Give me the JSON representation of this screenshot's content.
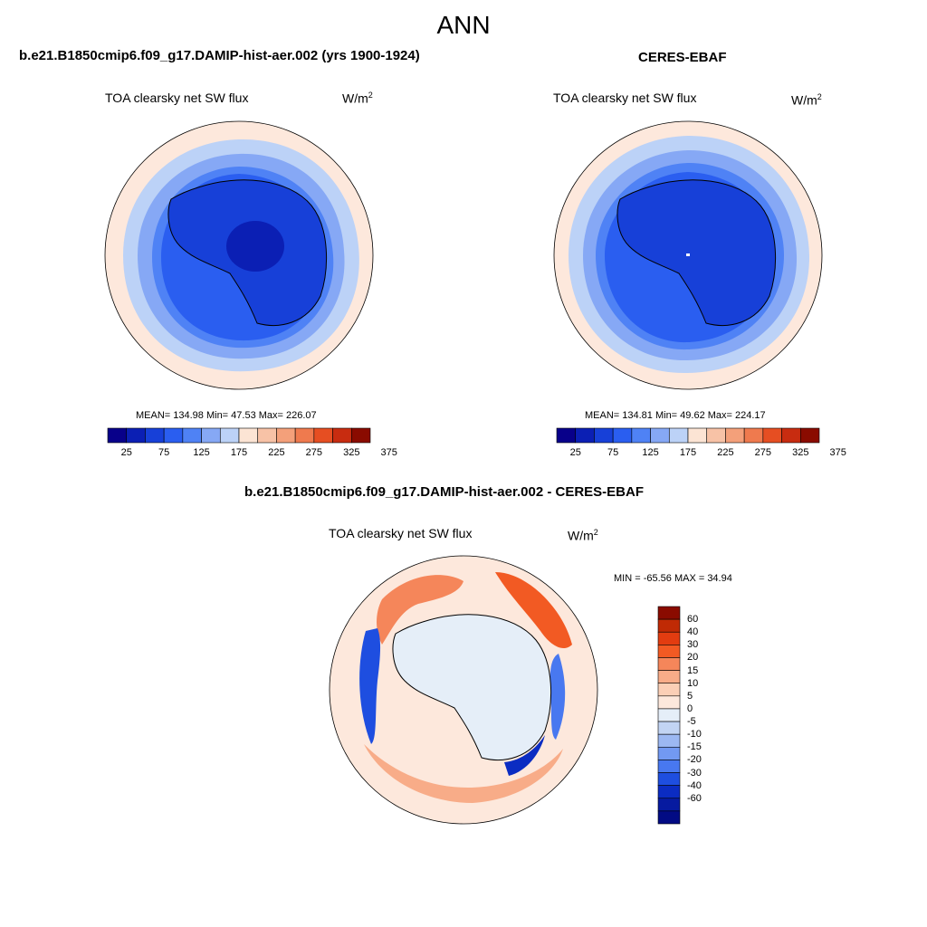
{
  "season": "ANN",
  "panels": {
    "model": {
      "case_title": "b.e21.B1850cmip6.f09_g17.DAMIP-hist-aer.002 (yrs 1900-1924)",
      "var_name": "TOA clearsky net SW flux",
      "units_base": "W/m",
      "units_exp": "2",
      "stats": "MEAN= 134.98  Min=  47.53  Max= 226.07"
    },
    "obs": {
      "case_title": "CERES-EBAF",
      "var_name": "TOA clearsky net SW flux",
      "units_base": "W/m",
      "units_exp": "2",
      "stats": "MEAN= 134.81  Min=  49.62  Max= 224.17"
    },
    "diff": {
      "case_title": "b.e21.B1850cmip6.f09_g17.DAMIP-hist-aer.002 - CERES-EBAF",
      "var_name": "TOA clearsky net SW flux",
      "units_base": "W/m",
      "units_exp": "2",
      "stats": "MIN = -65.56 MAX =  34.94"
    }
  },
  "colorbar_main": {
    "colors": [
      "#08008a",
      "#0b1fb4",
      "#1740d8",
      "#2a5ef0",
      "#4f82f5",
      "#86a8f5",
      "#bcd2f7",
      "#fce4d4",
      "#f7c2a6",
      "#f4a07a",
      "#ef7a4e",
      "#e64e22",
      "#c82c10",
      "#8a0b00"
    ],
    "tick_labels": [
      "25",
      "75",
      "125",
      "175",
      "225",
      "275",
      "325",
      "375"
    ]
  },
  "colorbar_diff": {
    "colors": [
      "#8a0b00",
      "#c02a05",
      "#e23c10",
      "#f25a23",
      "#f5865a",
      "#f8ac88",
      "#fbcfb6",
      "#fde8dc",
      "#e5eef8",
      "#c2d4f3",
      "#9cb8f2",
      "#7299f2",
      "#4878f0",
      "#1e4ee0",
      "#0b2cc2",
      "#061aa0",
      "#020b84"
    ],
    "tick_labels": [
      "60",
      "40",
      "30",
      "20",
      "15",
      "10",
      "5",
      "0",
      "-5",
      "-10",
      "-15",
      "-20",
      "-30",
      "-40",
      "-60"
    ]
  },
  "map_colors": {
    "outer": "#fde8dc",
    "ring1": "#bcd2f7",
    "ring2": "#86a8f5",
    "ring3": "#4f82f5",
    "ring4": "#2a5ef0",
    "ice": "#1740d8",
    "ice_core": "#0b1fb4",
    "diff_bg": "#fde8dc",
    "diff_ice": "#e5eef8",
    "coast": "#000000"
  }
}
